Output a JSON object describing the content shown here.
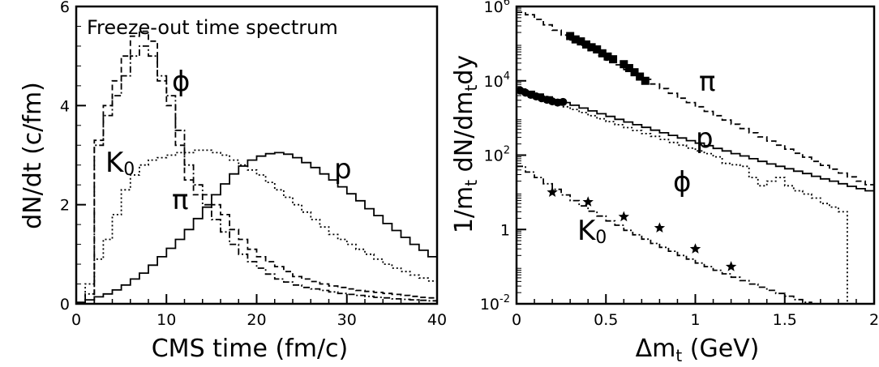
{
  "chart_data": [
    {
      "type": "line",
      "subtype": "histogram",
      "title": "Freeze-out time spectrum",
      "xlabel": "CMS time  (fm/c)",
      "ylabel": "dN/dt    (c/fm)",
      "xlim": [
        0,
        40
      ],
      "ylim": [
        0,
        6
      ],
      "x_ticks": [
        0,
        10,
        20,
        30,
        40
      ],
      "y_ticks": [
        0,
        2,
        4,
        6
      ],
      "grid": false,
      "series": [
        {
          "name": "ϕ",
          "style": "dashed",
          "label": "ϕ",
          "x": [
            0,
            1,
            2,
            3,
            4,
            5,
            6,
            7,
            8,
            9,
            10,
            11,
            12,
            13,
            14,
            15,
            16,
            17,
            18,
            19,
            20,
            21,
            22,
            23,
            24,
            25,
            26,
            27,
            28,
            29,
            30,
            31,
            32,
            33,
            34,
            35,
            36,
            37,
            38,
            39,
            40
          ],
          "y": [
            0,
            0,
            3.3,
            4.0,
            4.5,
            5.0,
            5.4,
            5.5,
            5.3,
            4.5,
            4.0,
            3.2,
            2.5,
            2.2,
            2.2,
            2.0,
            1.8,
            1.5,
            1.3,
            1.1,
            0.95,
            0.85,
            0.75,
            0.65,
            0.55,
            0.5,
            0.45,
            0.4,
            0.36,
            0.33,
            0.3,
            0.27,
            0.25,
            0.23,
            0.21,
            0.19,
            0.17,
            0.15,
            0.13,
            0.12,
            0.1
          ]
        },
        {
          "name": "K0",
          "style": "dash-dot",
          "label": "K0",
          "x": [
            0,
            1,
            2,
            3,
            4,
            5,
            6,
            7,
            8,
            9,
            10,
            11,
            12,
            13,
            14,
            15,
            16,
            17,
            18,
            19,
            20,
            21,
            22,
            23,
            24,
            25,
            26,
            27,
            28,
            29,
            30,
            31,
            32,
            33,
            34,
            35,
            36,
            37,
            38,
            39,
            40
          ],
          "y": [
            0,
            0.2,
            3.2,
            3.8,
            4.2,
            4.6,
            5.0,
            5.2,
            5.0,
            4.6,
            4.2,
            3.5,
            2.8,
            2.4,
            2.0,
            1.7,
            1.45,
            1.2,
            1.0,
            0.85,
            0.72,
            0.6,
            0.5,
            0.44,
            0.38,
            0.33,
            0.3,
            0.27,
            0.24,
            0.21,
            0.19,
            0.17,
            0.15,
            0.13,
            0.12,
            0.1,
            0.09,
            0.08,
            0.07,
            0.06,
            0.05
          ]
        },
        {
          "name": "π",
          "style": "dotted",
          "label": "π",
          "x": [
            0,
            1,
            2,
            3,
            4,
            5,
            6,
            7,
            8,
            9,
            10,
            11,
            12,
            13,
            14,
            15,
            16,
            17,
            18,
            19,
            20,
            21,
            22,
            23,
            24,
            25,
            26,
            27,
            28,
            29,
            30,
            31,
            32,
            33,
            34,
            35,
            36,
            37,
            38,
            39,
            40
          ],
          "y": [
            0,
            0.4,
            0.9,
            1.3,
            1.8,
            2.3,
            2.6,
            2.8,
            2.9,
            2.95,
            3.0,
            3.05,
            3.05,
            3.1,
            3.1,
            3.05,
            3.0,
            2.9,
            2.8,
            2.7,
            2.6,
            2.45,
            2.3,
            2.15,
            2.0,
            1.85,
            1.7,
            1.55,
            1.4,
            1.3,
            1.2,
            1.1,
            1.0,
            0.9,
            0.8,
            0.72,
            0.65,
            0.58,
            0.52,
            0.46,
            0.42
          ]
        },
        {
          "name": "p",
          "style": "solid",
          "label": "p",
          "x": [
            0,
            1,
            2,
            3,
            4,
            5,
            6,
            7,
            8,
            9,
            10,
            11,
            12,
            13,
            14,
            15,
            16,
            17,
            18,
            19,
            20,
            21,
            22,
            23,
            24,
            25,
            26,
            27,
            28,
            29,
            30,
            31,
            32,
            33,
            34,
            35,
            36,
            37,
            38,
            39,
            40
          ],
          "y": [
            0.03,
            0.08,
            0.14,
            0.2,
            0.28,
            0.38,
            0.5,
            0.62,
            0.78,
            0.95,
            1.12,
            1.3,
            1.5,
            1.72,
            1.95,
            2.2,
            2.42,
            2.62,
            2.78,
            2.9,
            2.98,
            3.03,
            3.05,
            3.02,
            2.95,
            2.85,
            2.75,
            2.62,
            2.5,
            2.36,
            2.22,
            2.08,
            1.92,
            1.78,
            1.62,
            1.48,
            1.34,
            1.2,
            1.08,
            0.95,
            0.95
          ]
        }
      ]
    },
    {
      "type": "line",
      "subtype": "histogram",
      "xlabel": "Δm_t   (GeV)",
      "ylabel": "1/m_t dN/dm_t dy",
      "xlim": [
        0,
        2
      ],
      "ylim": [
        0.01,
        1000000
      ],
      "yscale": "log",
      "x_ticks": [
        0,
        0.5,
        1,
        1.5,
        2
      ],
      "y_ticks": [
        0.01,
        1,
        100,
        10000,
        1000000
      ],
      "grid": false,
      "series": [
        {
          "name": "π",
          "style": "dashed",
          "label": "π",
          "x": [
            0,
            0.05,
            0.1,
            0.15,
            0.2,
            0.25,
            0.3,
            0.35,
            0.4,
            0.45,
            0.5,
            0.55,
            0.6,
            0.65,
            0.7,
            0.75,
            0.8,
            0.85,
            0.9,
            0.95,
            1.0,
            1.05,
            1.1,
            1.15,
            1.2,
            1.25,
            1.3,
            1.35,
            1.4,
            1.45,
            1.5,
            1.55,
            1.6,
            1.65,
            1.7,
            1.75,
            1.8,
            1.85,
            1.9,
            1.95,
            2.0
          ],
          "y": [
            700000,
            600000,
            450000,
            320000,
            230000,
            170000,
            125000,
            90000,
            65000,
            48000,
            36000,
            27000,
            20000,
            15000,
            11000,
            8200,
            6200,
            4600,
            3400,
            2600,
            2000,
            1500,
            1150,
            880,
            680,
            520,
            400,
            310,
            240,
            185,
            145,
            112,
            88,
            68,
            53,
            42,
            33,
            26,
            20,
            16,
            13
          ]
        },
        {
          "name": "π data",
          "style": "markers",
          "marker": "square",
          "x": [
            0.3,
            0.33,
            0.36,
            0.39,
            0.42,
            0.45,
            0.48,
            0.51,
            0.54,
            0.6,
            0.63,
            0.66,
            0.69,
            0.72
          ],
          "y": [
            160000,
            130000,
            115000,
            95000,
            80000,
            70000,
            55000,
            45000,
            38000,
            28000,
            22000,
            17000,
            13000,
            10000
          ]
        },
        {
          "name": "p",
          "style": "solid",
          "label": "p",
          "x": [
            0,
            0.05,
            0.1,
            0.15,
            0.2,
            0.25,
            0.3,
            0.35,
            0.4,
            0.45,
            0.5,
            0.55,
            0.6,
            0.65,
            0.7,
            0.75,
            0.8,
            0.85,
            0.9,
            0.95,
            1.0,
            1.05,
            1.1,
            1.15,
            1.2,
            1.25,
            1.3,
            1.35,
            1.4,
            1.45,
            1.5,
            1.55,
            1.6,
            1.65,
            1.7,
            1.75,
            1.8,
            1.85,
            1.9,
            1.95,
            2.0
          ],
          "y": [
            6000,
            5200,
            4400,
            3700,
            3100,
            2600,
            2200,
            1850,
            1550,
            1300,
            1100,
            920,
            780,
            660,
            560,
            470,
            400,
            340,
            290,
            245,
            210,
            180,
            152,
            130,
            110,
            95,
            80,
            68,
            58,
            50,
            43,
            37,
            32,
            27,
            23,
            20,
            17,
            14.5,
            12.5,
            11,
            10
          ]
        },
        {
          "name": "p data",
          "style": "markers",
          "marker": "circle",
          "x": [
            0.02,
            0.05,
            0.08,
            0.11,
            0.14,
            0.17,
            0.2,
            0.23,
            0.26
          ],
          "y": [
            5500,
            4800,
            4200,
            3800,
            3400,
            3100,
            2800,
            2600,
            2700
          ]
        },
        {
          "name": "ϕ",
          "style": "dotted",
          "label": "ϕ",
          "x": [
            0,
            0.05,
            0.1,
            0.15,
            0.2,
            0.25,
            0.3,
            0.35,
            0.4,
            0.45,
            0.5,
            0.55,
            0.6,
            0.65,
            0.7,
            0.75,
            0.8,
            0.85,
            0.9,
            0.95,
            1.0,
            1.05,
            1.1,
            1.15,
            1.2,
            1.25,
            1.3,
            1.35,
            1.4,
            1.45,
            1.5,
            1.55,
            1.6,
            1.65,
            1.7,
            1.75,
            1.8,
            1.85,
            1.9,
            1.95,
            2.0
          ],
          "y": [
            5000,
            4200,
            3500,
            2900,
            2400,
            2000,
            1700,
            1400,
            1150,
            950,
            800,
            660,
            550,
            460,
            380,
            320,
            265,
            220,
            185,
            155,
            130,
            110,
            90,
            60,
            55,
            50,
            25,
            15,
            20,
            25,
            15,
            11,
            9,
            7,
            5,
            4,
            3,
            0.008,
            0.008,
            0.008,
            0.008
          ]
        },
        {
          "name": "K0",
          "style": "dash-dot",
          "label": "K0",
          "x": [
            0,
            0.05,
            0.1,
            0.15,
            0.2,
            0.25,
            0.3,
            0.35,
            0.4,
            0.45,
            0.5,
            0.55,
            0.6,
            0.65,
            0.7,
            0.75,
            0.8,
            0.85,
            0.9,
            0.95,
            1.0,
            1.05,
            1.1,
            1.15,
            1.2,
            1.25,
            1.3,
            1.35,
            1.4,
            1.45,
            1.5,
            1.55,
            1.6,
            1.65,
            1.7,
            1.75,
            1.8,
            1.85,
            1.9,
            1.95,
            2.0
          ],
          "y": [
            50,
            35,
            25,
            17,
            12,
            8.5,
            6,
            4.3,
            3.1,
            2.3,
            1.7,
            1.3,
            0.95,
            0.72,
            0.55,
            0.42,
            0.33,
            0.26,
            0.2,
            0.16,
            0.125,
            0.1,
            0.08,
            0.064,
            0.052,
            0.042,
            0.034,
            0.028,
            0.023,
            0.019,
            0.016,
            0.013,
            0.011,
            0.009,
            0.008,
            0.007,
            0.006,
            0.005,
            0.004,
            0.004,
            0.004
          ]
        },
        {
          "name": "K0 data",
          "style": "markers",
          "marker": "star",
          "x": [
            0.2,
            0.4,
            0.6,
            0.8,
            1.0,
            1.2
          ],
          "y": [
            10,
            5.5,
            2.2,
            1.1,
            0.3,
            0.1
          ]
        }
      ]
    }
  ]
}
